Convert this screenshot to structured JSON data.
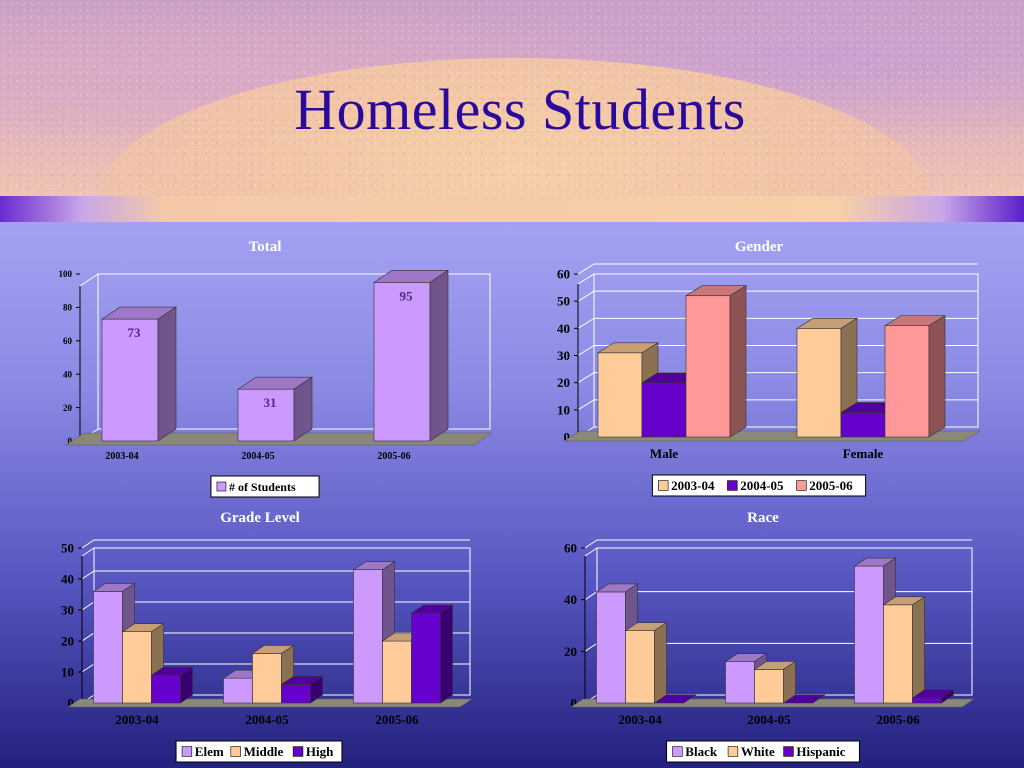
{
  "page": {
    "title": "Homeless Students"
  },
  "colors": {
    "purple_light": "#cc99ff",
    "peach": "#ffcc99",
    "purple_dark": "#6600cc",
    "salmon": "#ff9999",
    "title_color": "#2a0a9c"
  },
  "chart_data": [
    {
      "type": "bar",
      "title": "Total",
      "categories": [
        "2003-04",
        "2004-05",
        "2005-06"
      ],
      "series": [
        {
          "name": "# of Students",
          "values": [
            73,
            31,
            95
          ],
          "color": "#cc99ff"
        }
      ],
      "ylim": [
        0,
        100
      ],
      "yticks": [
        0,
        20,
        40,
        60,
        80,
        100
      ],
      "data_labels": true,
      "grid": false,
      "legend": "bottom"
    },
    {
      "type": "bar",
      "title": "Gender",
      "categories": [
        "Male",
        "Female"
      ],
      "series": [
        {
          "name": "2003-04",
          "values": [
            31,
            40
          ],
          "color": "#ffcc99"
        },
        {
          "name": "2004-05",
          "values": [
            20,
            9
          ],
          "color": "#6600cc"
        },
        {
          "name": "2005-06",
          "values": [
            52,
            41
          ],
          "color": "#ff9999"
        }
      ],
      "ylim": [
        0,
        60
      ],
      "yticks": [
        0,
        10,
        20,
        30,
        40,
        50,
        60
      ],
      "grid": true,
      "legend": "bottom"
    },
    {
      "type": "bar",
      "title": "Grade Level",
      "categories": [
        "2003-04",
        "2004-05",
        "2005-06"
      ],
      "series": [
        {
          "name": "Elem",
          "values": [
            36,
            8,
            43
          ],
          "color": "#cc99ff"
        },
        {
          "name": "Middle",
          "values": [
            23,
            16,
            20
          ],
          "color": "#ffcc99"
        },
        {
          "name": "High",
          "values": [
            9,
            6,
            29
          ],
          "color": "#6600cc"
        }
      ],
      "ylim": [
        0,
        50
      ],
      "yticks": [
        0,
        10,
        20,
        30,
        40,
        50
      ],
      "grid": true,
      "legend": "bottom"
    },
    {
      "type": "bar",
      "title": "Race",
      "categories": [
        "2003-04",
        "2004-05",
        "2005-06"
      ],
      "series": [
        {
          "name": "Black",
          "values": [
            43,
            16,
            53
          ],
          "color": "#cc99ff"
        },
        {
          "name": "White",
          "values": [
            28,
            13,
            38
          ],
          "color": "#ffcc99"
        },
        {
          "name": "Hispanic",
          "values": [
            0,
            0,
            2
          ],
          "color": "#6600cc"
        }
      ],
      "ylim": [
        0,
        60
      ],
      "yticks": [
        0,
        20,
        40,
        60
      ],
      "grid": true,
      "legend": "bottom"
    }
  ]
}
